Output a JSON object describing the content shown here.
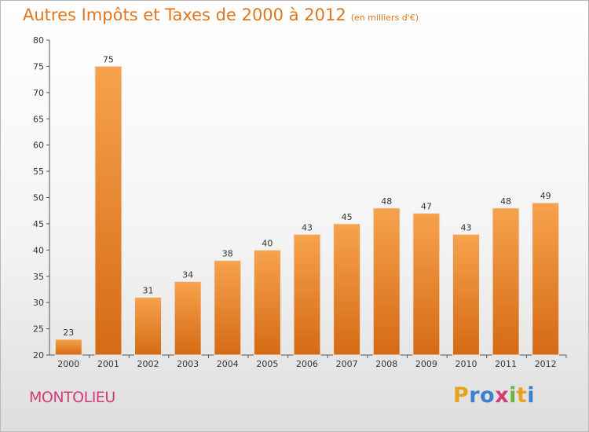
{
  "chart_data": {
    "type": "bar",
    "title": "Autres Impôts et Taxes de 2000 à 2012",
    "subtitle": "(en milliers d'€)",
    "categories": [
      "2000",
      "2001",
      "2002",
      "2003",
      "2004",
      "2005",
      "2006",
      "2007",
      "2008",
      "2009",
      "2010",
      "2011",
      "2012"
    ],
    "values": [
      23,
      75,
      31,
      34,
      38,
      40,
      43,
      45,
      48,
      47,
      43,
      48,
      49
    ],
    "ylim": [
      20,
      80
    ],
    "yticks": [
      20,
      25,
      30,
      35,
      40,
      45,
      50,
      55,
      60,
      65,
      70,
      75,
      80
    ],
    "grid": false,
    "bar_color": "#f08a2c"
  },
  "place_name": "MONTOLIEU",
  "logo": {
    "letters": [
      "P",
      "r",
      "o",
      "x",
      "i",
      "t",
      "i"
    ],
    "colors": [
      "#e8a21c",
      "#3a7fd0",
      "#3a7fd0",
      "#d23c78",
      "#6bb43a",
      "#e8a21c",
      "#3a7fd0"
    ]
  }
}
